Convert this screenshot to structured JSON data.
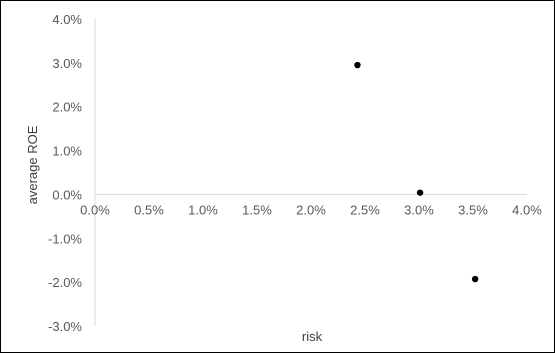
{
  "chart_data": {
    "type": "scatter",
    "title": "",
    "xlabel": "risk",
    "ylabel": "average ROE",
    "xlim": [
      0.0,
      4.0
    ],
    "ylim": [
      -3.0,
      4.0
    ],
    "x_ticks": [
      "0.0%",
      "0.5%",
      "1.0%",
      "1.5%",
      "2.0%",
      "2.5%",
      "3.0%",
      "3.5%",
      "4.0%"
    ],
    "y_ticks": [
      "4.0%",
      "3.0%",
      "2.0%",
      "1.0%",
      "0.0%",
      "-1.0%",
      "-2.0%",
      "-3.0%"
    ],
    "grid": false,
    "legend": "none",
    "series": [
      {
        "x": [
          2.43,
          3.01,
          3.52
        ],
        "y": [
          2.95,
          0.04,
          -1.93
        ]
      }
    ],
    "colors": {
      "marker": "#000000",
      "axis": "#d9d9d9",
      "tick_text": "#595959"
    }
  }
}
